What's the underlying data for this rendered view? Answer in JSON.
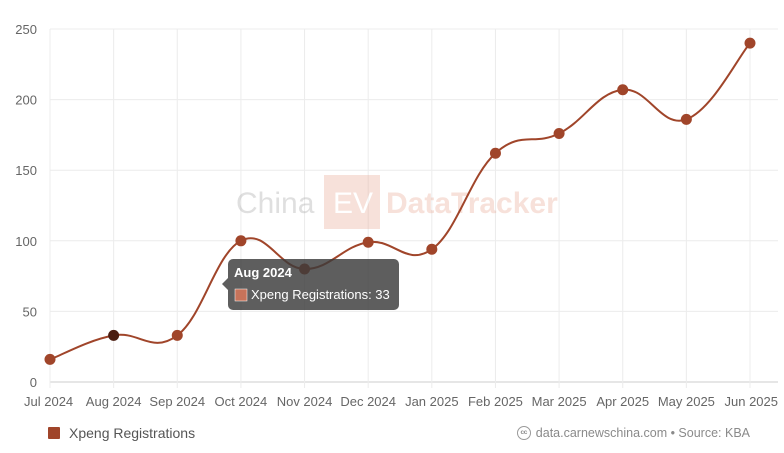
{
  "chart_data": {
    "type": "line",
    "categories": [
      "Jul 2024",
      "Aug 2024",
      "Sep 2024",
      "Oct 2024",
      "Nov 2024",
      "Dec 2024",
      "Jan 2025",
      "Feb 2025",
      "Mar 2025",
      "Apr 2025",
      "May 2025",
      "Jun 2025"
    ],
    "series": [
      {
        "name": "Xpeng Registrations",
        "values": [
          16,
          33,
          33,
          100,
          80,
          99,
          94,
          162,
          176,
          207,
          186,
          240
        ]
      }
    ],
    "ylim": [
      0,
      250
    ],
    "yticks": [
      "0",
      "50",
      "100",
      "150",
      "200",
      "250"
    ],
    "grid": true,
    "legend_position": "bottom-left",
    "color": "#a0452a"
  },
  "watermark": {
    "part1": "China",
    "part2": "EV",
    "part3": "DataTracker"
  },
  "tooltip": {
    "title": "Aug 2024",
    "label": "Xpeng Registrations: 33"
  },
  "legend": {
    "label": "Xpeng Registrations"
  },
  "source": {
    "icon": "cc",
    "text": "data.carnewschina.com • Source: KBA"
  }
}
